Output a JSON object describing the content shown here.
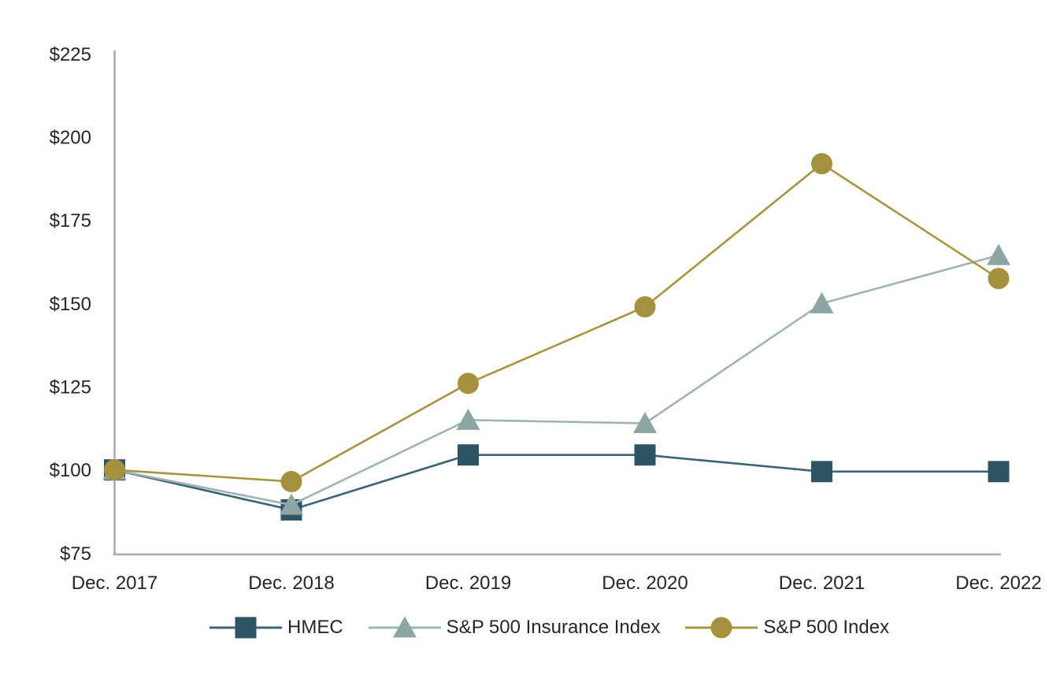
{
  "chart_data": {
    "type": "line",
    "title": "",
    "xlabel": "",
    "ylabel": "",
    "categories": [
      "Dec. 2017",
      "Dec. 2018",
      "Dec. 2019",
      "Dec. 2020",
      "Dec. 2021",
      "Dec. 2022"
    ],
    "y_ticks": [
      75,
      100,
      125,
      150,
      175,
      200,
      225
    ],
    "y_tick_labels": [
      "$75",
      "$100",
      "$125",
      "$150",
      "$175",
      "$200",
      "$225"
    ],
    "ylim": [
      75,
      225
    ],
    "grid": false,
    "legend_position": "bottom",
    "series": [
      {
        "name": "HMEC",
        "marker": "square",
        "color": "#2e5566",
        "line_color": "#3a6375",
        "values": [
          100,
          88,
          104.5,
          104.5,
          99.5,
          99.5
        ]
      },
      {
        "name": "S&P 500 Insurance Index",
        "marker": "triangle",
        "color": "#8ea5a6",
        "line_color": "#9db3b4",
        "values": [
          100,
          89.5,
          115,
          114,
          150,
          164.5
        ]
      },
      {
        "name": "S&P 500 Index",
        "marker": "circle",
        "color": "#a5913d",
        "line_color": "#a8943f",
        "values": [
          100,
          96.5,
          126,
          149,
          192,
          157.5
        ]
      }
    ]
  },
  "style": {
    "axis_color": "#b1b1b3",
    "text_color": "#262626",
    "background_color": "#ffffff"
  }
}
